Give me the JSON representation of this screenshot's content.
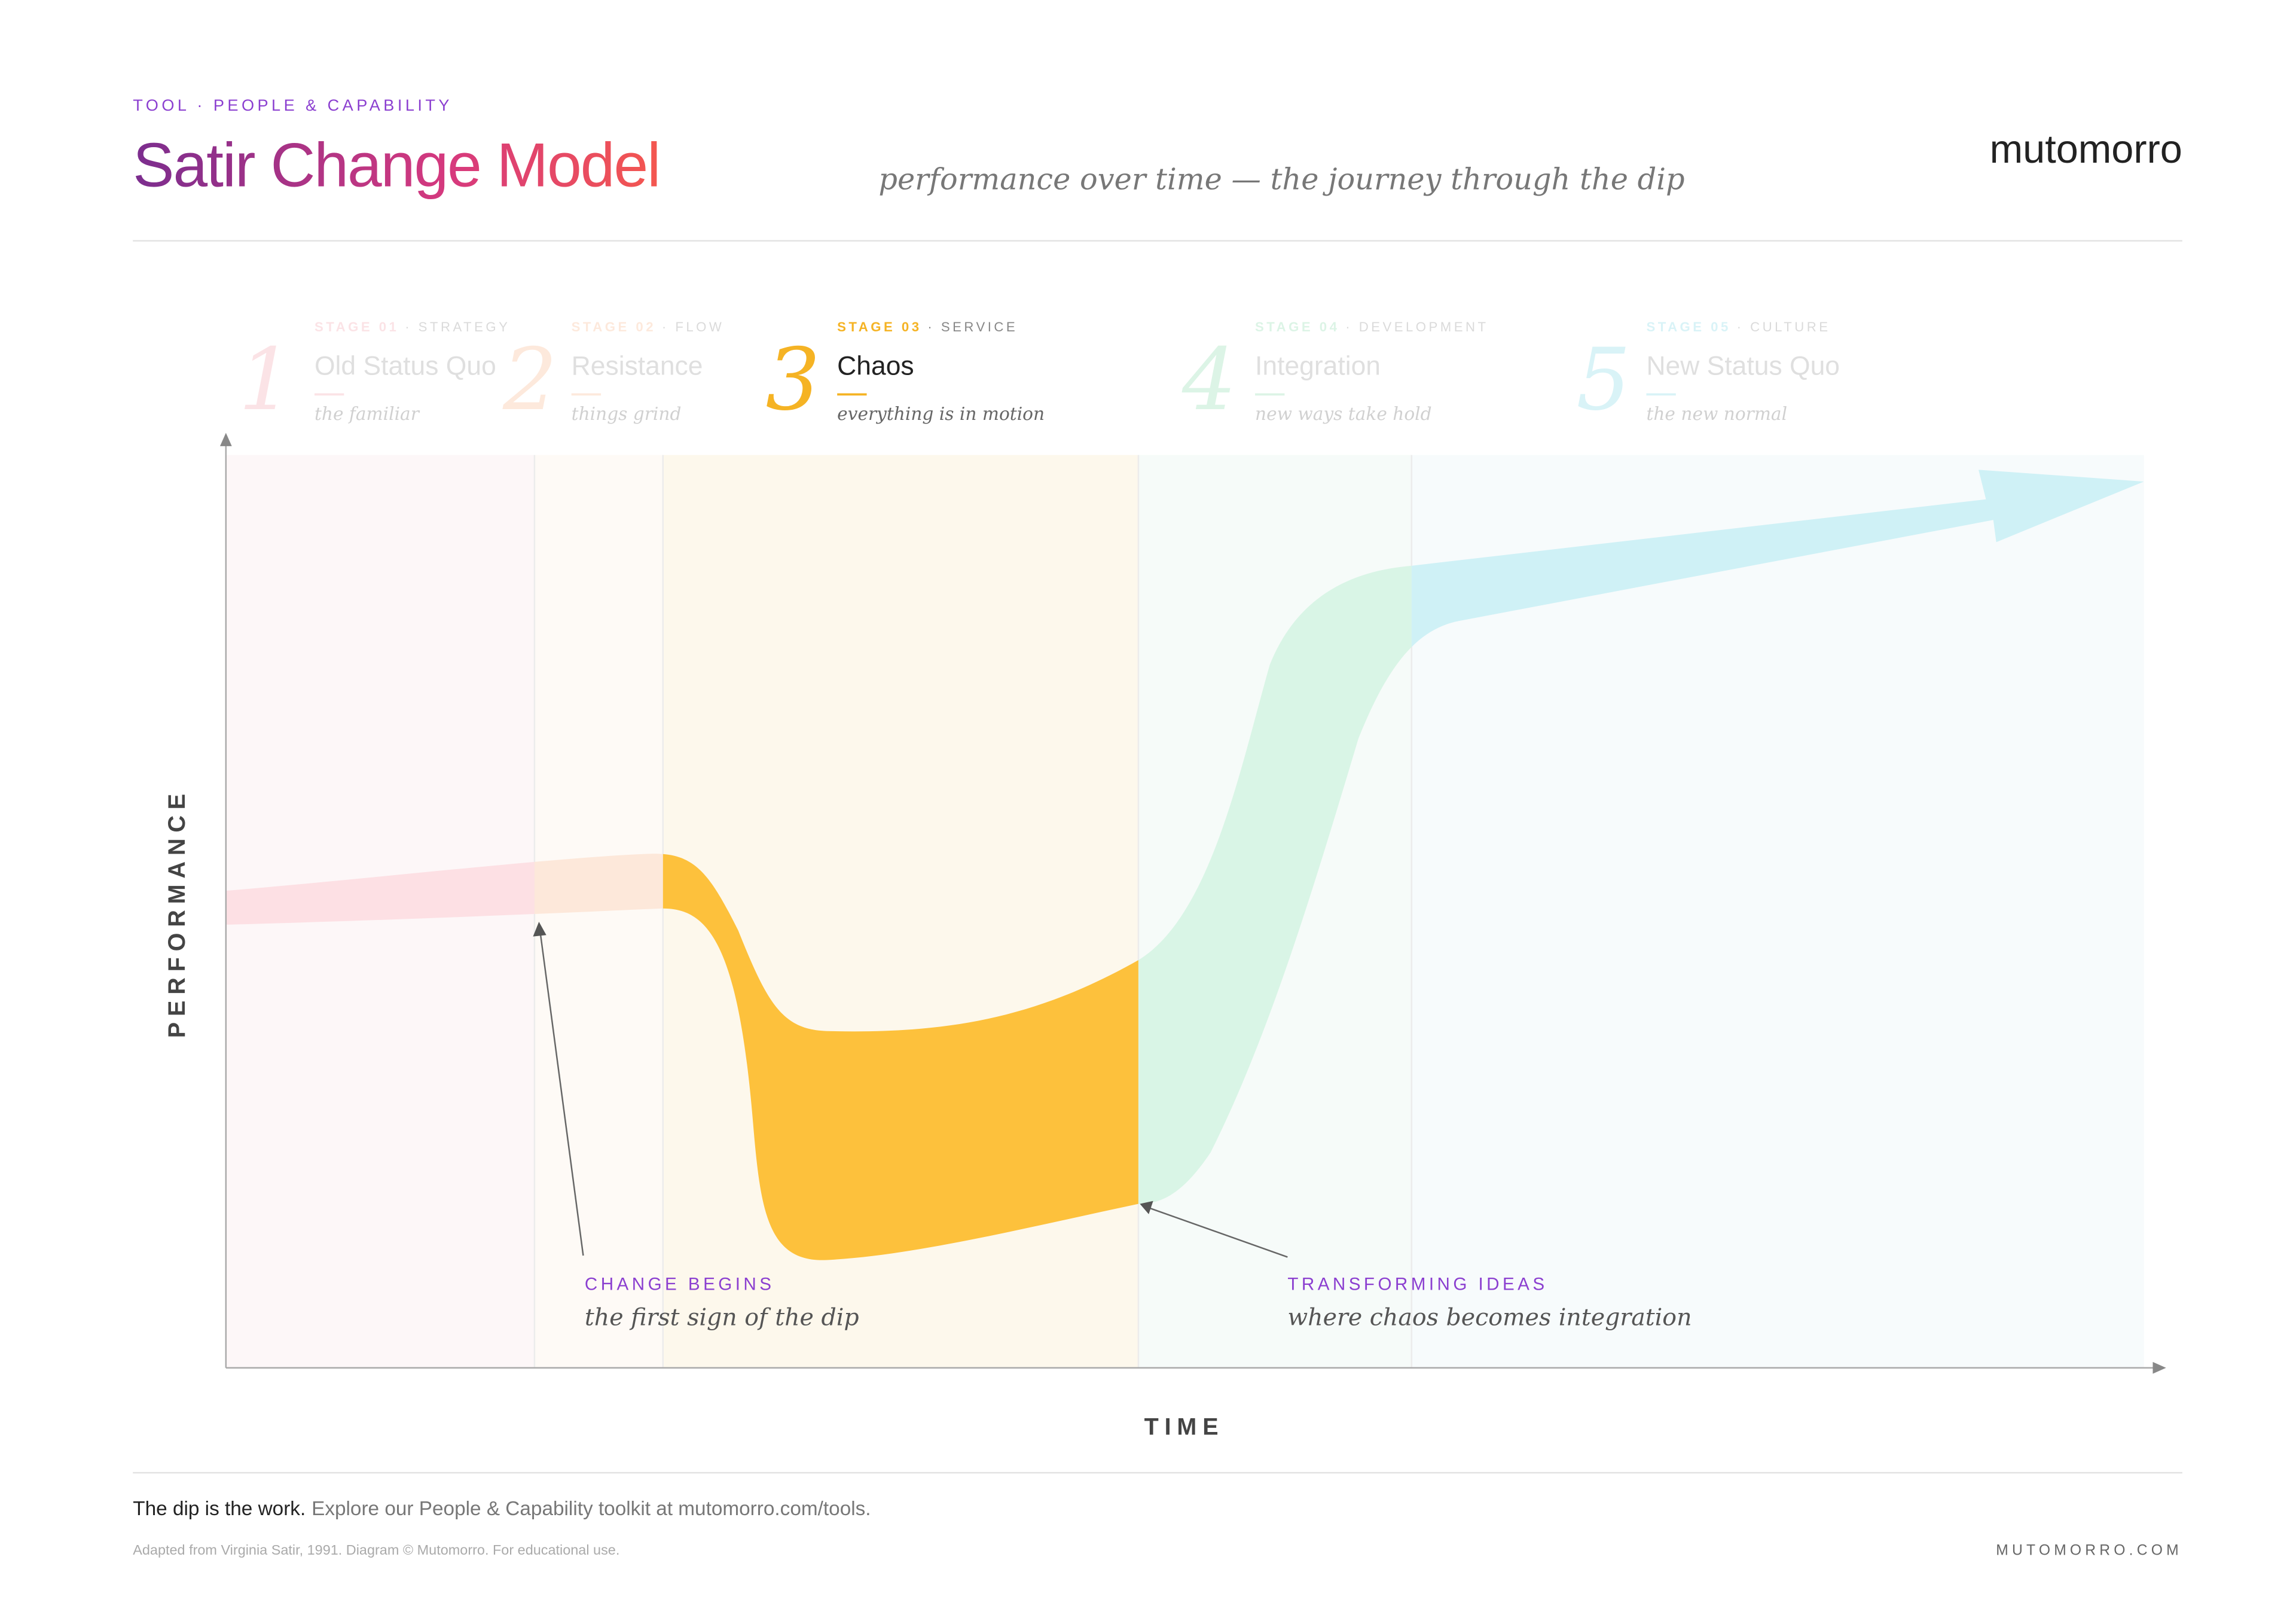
{
  "header": {
    "eyebrow": "TOOL · PEOPLE & CAPABILITY",
    "title": "Satir Change Model",
    "subtitle": "performance over time — the journey through the dip",
    "brand": "mutomorro"
  },
  "stages": [
    {
      "number": "1",
      "code": "STAGE 01",
      "category": "· STRATEGY",
      "title": "Old Status Quo",
      "tagline": "the familiar"
    },
    {
      "number": "2",
      "code": "STAGE 02",
      "category": "· FLOW",
      "title": "Resistance",
      "tagline": "things grind"
    },
    {
      "number": "3",
      "code": "STAGE 03",
      "category": "· SERVICE",
      "title": "Chaos",
      "tagline": "everything is in motion"
    },
    {
      "number": "4",
      "code": "STAGE 04",
      "category": "· DEVELOPMENT",
      "title": "Integration",
      "tagline": "new ways take hold"
    },
    {
      "number": "5",
      "code": "STAGE 05",
      "category": "· CULTURE",
      "title": "New Status Quo",
      "tagline": "the new normal"
    }
  ],
  "axes": {
    "y_label": "PERFORMANCE",
    "x_label": "TIME"
  },
  "annotations": [
    {
      "heading": "CHANGE BEGINS",
      "text": "the first sign of the dip"
    },
    {
      "heading": "TRANSFORMING IDEAS",
      "text": "where chaos becomes integration"
    }
  ],
  "footer": {
    "lead": "The dip is the work.",
    "text": "Explore our People & Capability toolkit at mutomorro.com/tools.",
    "credit": "Adapted from Virginia Satir, 1991. Diagram © Mutomorro. For educational use.",
    "site": "MUTOMORRO.COM"
  }
}
